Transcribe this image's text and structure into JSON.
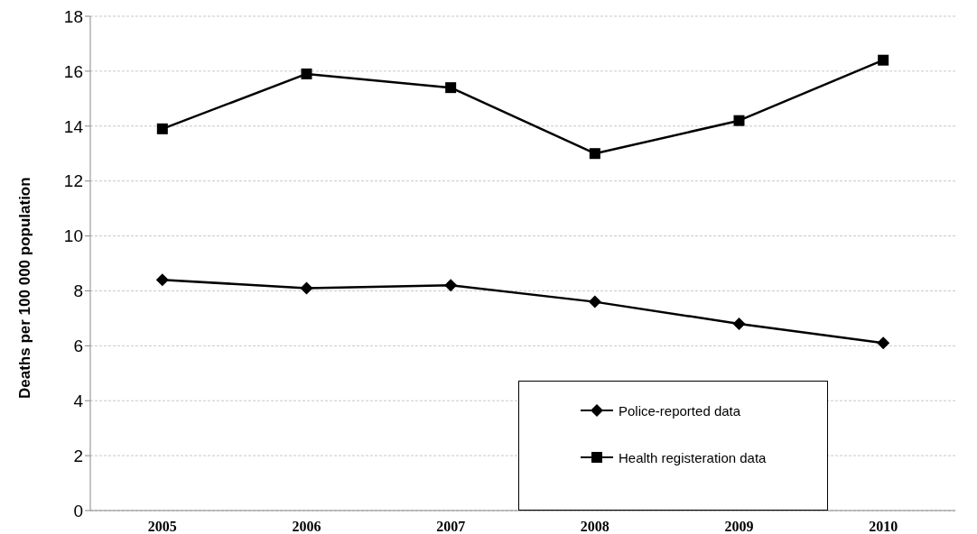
{
  "chart_data": {
    "type": "line",
    "ylabel": "Deaths per 100 000 population",
    "categories": [
      "2005",
      "2006",
      "2007",
      "2008",
      "2009",
      "2010"
    ],
    "series": [
      {
        "name": "Police-reported data",
        "color": "#000000",
        "marker": "diamond",
        "values": [
          8.4,
          8.1,
          8.2,
          7.6,
          6.8,
          6.1
        ]
      },
      {
        "name": "Health registeration data",
        "color": "#000000",
        "marker": "square",
        "values": [
          13.9,
          15.9,
          15.4,
          13.0,
          14.2,
          16.4
        ]
      }
    ],
    "ylim": [
      0,
      18
    ],
    "yticks": [
      0,
      2,
      4,
      6,
      8,
      10,
      12,
      14,
      16,
      18
    ],
    "grid": "y",
    "legend": "bottom right",
    "line_style": "solid"
  }
}
